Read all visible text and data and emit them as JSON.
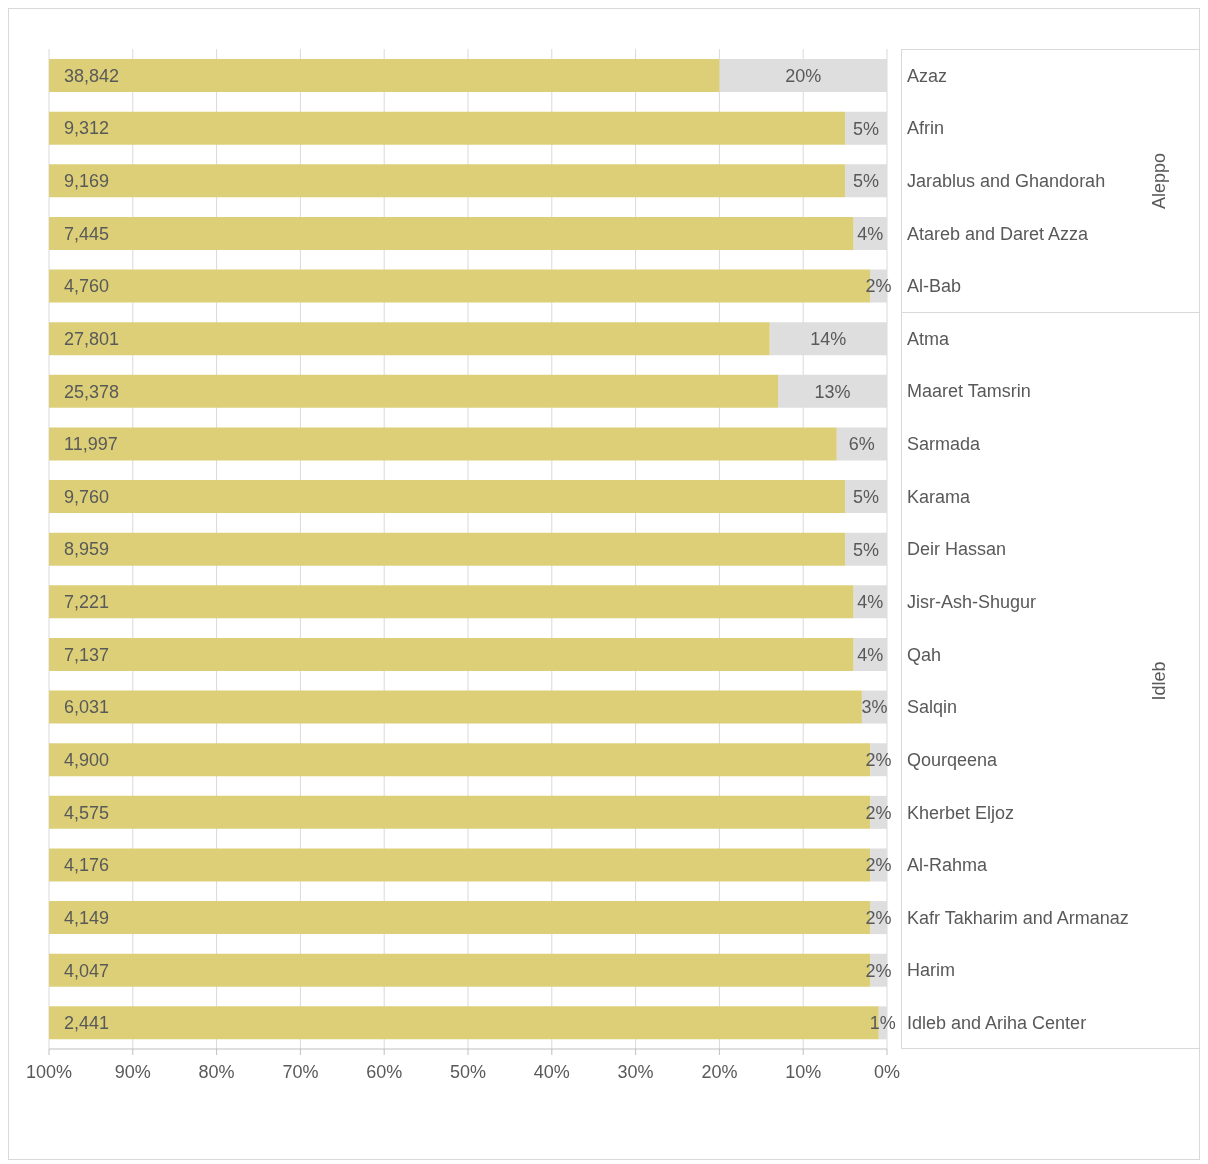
{
  "chart_data": {
    "type": "bar",
    "orientation": "horizontal",
    "stacked": true,
    "grid": "x",
    "categories": [
      "Azaz",
      "Afrin",
      "Jarablus and Ghandorah",
      "Atareb  and Daret Azza",
      "Al-Bab",
      "Atma",
      "Maaret Tamsrin",
      "Sarmada",
      "Karama",
      "Deir  Hassan",
      "Jisr-Ash-Shugur",
      "Qah",
      "Salqin",
      "Qourqeena",
      "Kherbet Eljoz",
      "Al-Rahma",
      "Kafr  Takharim and Armanaz",
      "Harim",
      "Idleb and Ariha Center"
    ],
    "series": [
      {
        "color": "#dedede",
        "values": [
          20,
          5,
          5,
          4,
          2,
          14,
          13,
          6,
          5,
          5,
          4,
          4,
          3,
          2,
          2,
          2,
          2,
          2,
          1
        ],
        "value_labels": [
          "20%",
          "5%",
          "5%",
          "4%",
          "2%",
          "14%",
          "13%",
          "6%",
          "5%",
          "5%",
          "4%",
          "4%",
          "3%",
          "2%",
          "2%",
          "2%",
          "2%",
          "2%",
          "1%"
        ]
      },
      {
        "color": "#dccf78",
        "values": [
          80,
          95,
          95,
          96,
          98,
          86,
          87,
          94,
          95,
          95,
          96,
          96,
          97,
          98,
          98,
          98,
          98,
          98,
          99
        ]
      }
    ],
    "xlim": [
      100,
      0
    ],
    "xticks": [
      {
        "value": 100,
        "label": "100%"
      },
      {
        "value": 90,
        "label": "90%"
      },
      {
        "value": 80,
        "label": "80%"
      },
      {
        "value": 70,
        "label": "70%"
      },
      {
        "value": 60,
        "label": "60%"
      },
      {
        "value": 50,
        "label": "50%"
      },
      {
        "value": 40,
        "label": "40%"
      },
      {
        "value": 30,
        "label": "30%"
      },
      {
        "value": 20,
        "label": "20%"
      },
      {
        "value": 10,
        "label": "10%"
      },
      {
        "value": 0,
        "label": "0%"
      }
    ],
    "annotations": [
      "Aleppo",
      "Idleb",
      "38,842",
      "9,312",
      "9,169",
      "7,445",
      "4,760",
      "27,801",
      "25,378",
      "11,997",
      "9,760",
      "8,959",
      "7,221",
      "7,137",
      "6,031",
      "4,900",
      "4,575",
      "4,176",
      "4,149",
      "4,047",
      "2,441"
    ]
  }
}
